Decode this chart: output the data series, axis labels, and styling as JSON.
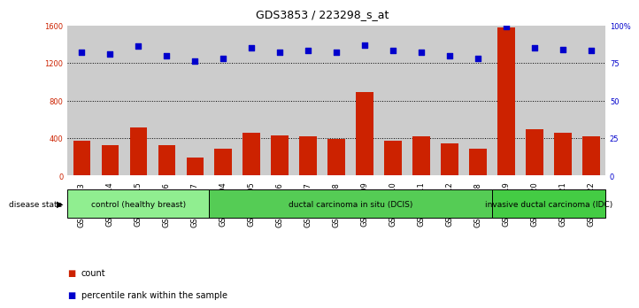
{
  "title": "GDS3853 / 223298_s_at",
  "samples": [
    "GSM535613",
    "GSM535614",
    "GSM535615",
    "GSM535616",
    "GSM535617",
    "GSM535604",
    "GSM535605",
    "GSM535606",
    "GSM535607",
    "GSM535608",
    "GSM535609",
    "GSM535610",
    "GSM535611",
    "GSM535612",
    "GSM535618",
    "GSM535619",
    "GSM535620",
    "GSM535621",
    "GSM535622"
  ],
  "counts": [
    370,
    320,
    510,
    320,
    195,
    290,
    455,
    430,
    415,
    390,
    890,
    370,
    420,
    340,
    290,
    1580,
    490,
    460,
    420
  ],
  "percentiles": [
    82,
    81,
    86,
    80,
    76,
    78,
    85,
    82,
    83,
    82,
    87,
    83,
    82,
    80,
    78,
    99,
    85,
    84,
    83
  ],
  "groups": [
    {
      "label": "control (healthy breast)",
      "start": 0,
      "end": 5,
      "color": "#90EE90"
    },
    {
      "label": "ductal carcinoma in situ (DCIS)",
      "start": 5,
      "end": 15,
      "color": "#55CC55"
    },
    {
      "label": "invasive ductal carcinoma (IDC)",
      "start": 15,
      "end": 19,
      "color": "#44CC44"
    }
  ],
  "bar_color": "#CC2200",
  "dot_color": "#0000CC",
  "ylim_left": [
    0,
    1600
  ],
  "ylim_right": [
    0,
    100
  ],
  "yticks_left": [
    0,
    400,
    800,
    1200,
    1600
  ],
  "yticks_right": [
    0,
    25,
    50,
    75,
    100
  ],
  "grid_values": [
    400,
    800,
    1200
  ],
  "background_color": "#ffffff",
  "bar_bg_color": "#cccccc",
  "title_fontsize": 9,
  "tick_fontsize": 6,
  "group_fontsize": 6.5,
  "legend_fontsize": 7
}
